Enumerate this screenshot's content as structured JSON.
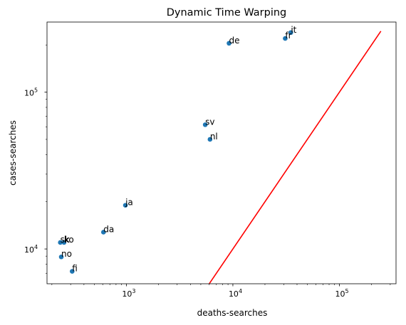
{
  "chart_data": {
    "type": "scatter",
    "title": "Dynamic Time Warping",
    "xlabel": "deaths-searches",
    "ylabel": "cases-searches",
    "xscale": "log",
    "yscale": "log",
    "xlim": [
      180,
      340000
    ],
    "ylim": [
      6000,
      280000
    ],
    "grid": false,
    "legend": "none",
    "point_color": "#1f77b4",
    "line_color": "#ff0000",
    "x_ticks": [
      {
        "value": 1000,
        "base": "10",
        "exp": "3"
      },
      {
        "value": 10000,
        "base": "10",
        "exp": "4"
      },
      {
        "value": 100000,
        "base": "10",
        "exp": "5"
      }
    ],
    "y_ticks": [
      {
        "value": 10000,
        "base": "10",
        "exp": "4"
      },
      {
        "value": 100000,
        "base": "10",
        "exp": "5"
      }
    ],
    "points": [
      {
        "label": "it",
        "x": 35000,
        "y": 240000
      },
      {
        "label": "fr",
        "x": 31000,
        "y": 220000
      },
      {
        "label": "de",
        "x": 9200,
        "y": 205000
      },
      {
        "label": "sv",
        "x": 5500,
        "y": 62000
      },
      {
        "label": "nl",
        "x": 6100,
        "y": 50000
      },
      {
        "label": "ja",
        "x": 980,
        "y": 19000
      },
      {
        "label": "da",
        "x": 610,
        "y": 12800
      },
      {
        "label": "sk",
        "x": 240,
        "y": 11000
      },
      {
        "label": "ko",
        "x": 260,
        "y": 11000
      },
      {
        "label": "no",
        "x": 245,
        "y": 8900
      },
      {
        "label": "fi",
        "x": 310,
        "y": 7200
      }
    ],
    "line": {
      "x": [
        5800,
        245000
      ],
      "y": [
        5800,
        245000
      ]
    }
  }
}
